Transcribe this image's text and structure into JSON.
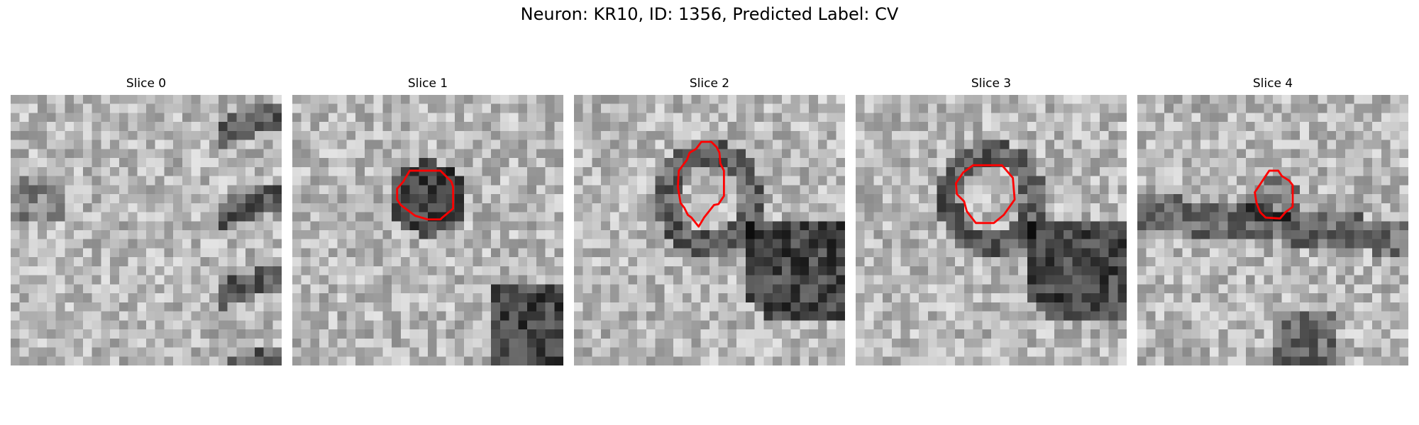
{
  "figure": {
    "title": "Neuron: KR10, ID: 1356, Predicted Label: CV"
  },
  "panels": [
    {
      "title": "Slice 0",
      "seed": 11,
      "dark_blobs": "edge-right",
      "outline": false
    },
    {
      "title": "Slice 1",
      "seed": 23,
      "dark_blobs": "center-dark",
      "outline": true
    },
    {
      "title": "Slice 2",
      "seed": 37,
      "dark_blobs": "ring",
      "outline": true
    },
    {
      "title": "Slice 3",
      "seed": 51,
      "dark_blobs": "ring",
      "outline": true
    },
    {
      "title": "Slice 4",
      "seed": 67,
      "dark_blobs": "band",
      "outline": true
    }
  ],
  "colors": {
    "outline": "#ff0000"
  }
}
